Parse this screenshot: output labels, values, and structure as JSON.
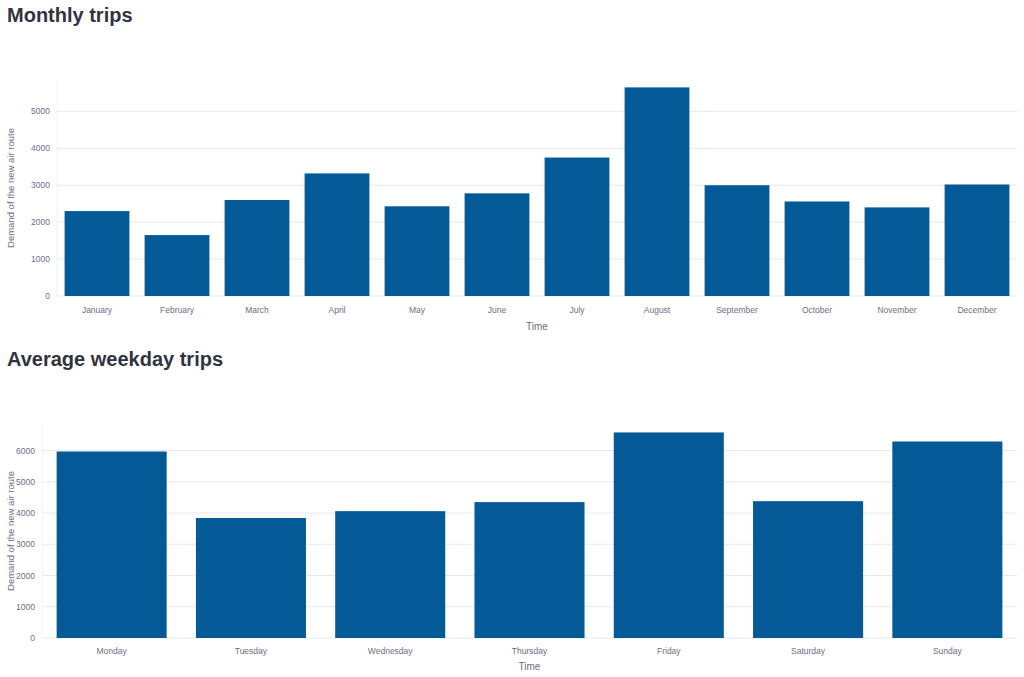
{
  "chart_data": [
    {
      "type": "bar",
      "title": "Monthly trips",
      "x_label": "Time",
      "y_label": "Demand of the new air route",
      "categories": [
        "January",
        "February",
        "March",
        "April",
        "May",
        "June",
        "July",
        "August",
        "September",
        "October",
        "November",
        "December"
      ],
      "values": [
        2300,
        1650,
        2600,
        3320,
        2430,
        2780,
        3750,
        5650,
        3000,
        2560,
        2400,
        3020
      ],
      "color": "#045a96",
      "ylim": [
        0,
        5850
      ],
      "yticks": [
        0,
        1000,
        2000,
        3000,
        4000,
        5000
      ],
      "grid": true
    },
    {
      "type": "bar",
      "title": "Average weekday trips",
      "x_label": "Time",
      "y_label": "Demand of the new air route",
      "categories": [
        "Monday",
        "Tuesday",
        "Wednesday",
        "Thursday",
        "Friday",
        "Saturday",
        "Sunday"
      ],
      "values": [
        5970,
        3840,
        4060,
        4350,
        6580,
        4380,
        6290
      ],
      "color": "#045a96",
      "ylim": [
        0,
        6850
      ],
      "yticks": [
        0,
        1000,
        2000,
        3000,
        4000,
        5000,
        6000
      ],
      "grid": true
    }
  ]
}
